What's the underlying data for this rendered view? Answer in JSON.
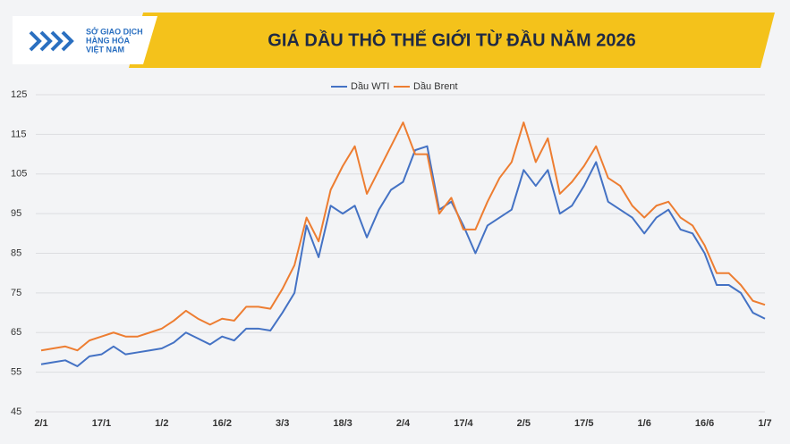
{
  "logo": {
    "lines": [
      "SỞ GIAO DỊCH",
      "HÀNG HÓA",
      "VIỆT NAM"
    ]
  },
  "chart_data": {
    "type": "line",
    "title": "GIÁ DẦU THÔ THẾ GIỚI TỪ ĐẦU NĂM 2026",
    "categories": [
      "2/1",
      null,
      null,
      null,
      null,
      "17/1",
      null,
      null,
      null,
      null,
      "1/2",
      null,
      null,
      null,
      null,
      "16/2",
      null,
      null,
      null,
      null,
      "3/3",
      null,
      null,
      null,
      null,
      "18/3",
      null,
      null,
      null,
      null,
      "2/4",
      null,
      null,
      null,
      null,
      "17/4",
      null,
      null,
      null,
      null,
      "2/5",
      null,
      null,
      null,
      null,
      "17/5",
      null,
      null,
      null,
      null,
      "1/6",
      null,
      null,
      null,
      null,
      "16/6",
      null,
      null,
      null,
      null,
      "1/7"
    ],
    "series": [
      {
        "name": "Dầu WTI",
        "color": "#4472c4",
        "values": [
          57,
          57.5,
          58,
          56.5,
          59,
          59.5,
          61.5,
          59.5,
          60,
          60.5,
          61,
          62.5,
          65,
          63.5,
          62,
          64,
          63,
          66,
          66,
          65.5,
          70,
          75,
          92,
          84,
          97,
          95,
          97,
          89,
          96,
          101,
          103,
          111,
          112,
          96,
          98,
          92,
          85,
          92,
          94,
          96,
          106,
          102,
          106,
          95,
          97,
          102,
          108,
          98,
          96,
          94,
          90,
          94,
          96,
          91,
          90,
          85,
          77,
          77,
          75,
          70,
          68.5
        ]
      },
      {
        "name": "Dầu Brent",
        "color": "#ed7d31",
        "values": [
          60.5,
          61,
          61.5,
          60.5,
          63,
          64,
          65,
          64,
          64,
          65,
          66,
          68,
          70.5,
          68.5,
          67,
          68.5,
          68,
          71.5,
          71.5,
          71,
          76,
          82,
          94,
          88,
          101,
          107,
          112,
          100,
          106,
          112,
          118,
          110,
          110,
          95,
          99,
          91,
          91,
          98,
          104,
          108,
          118,
          108,
          114,
          100,
          103,
          107,
          112,
          104,
          102,
          97,
          94,
          97,
          98,
          94,
          92,
          87,
          80,
          80,
          77,
          73,
          72
        ]
      }
    ],
    "ylim": [
      45,
      125
    ],
    "yticks": [
      45,
      55,
      65,
      75,
      85,
      95,
      105,
      115,
      125
    ],
    "grid": true,
    "legend": "top"
  }
}
